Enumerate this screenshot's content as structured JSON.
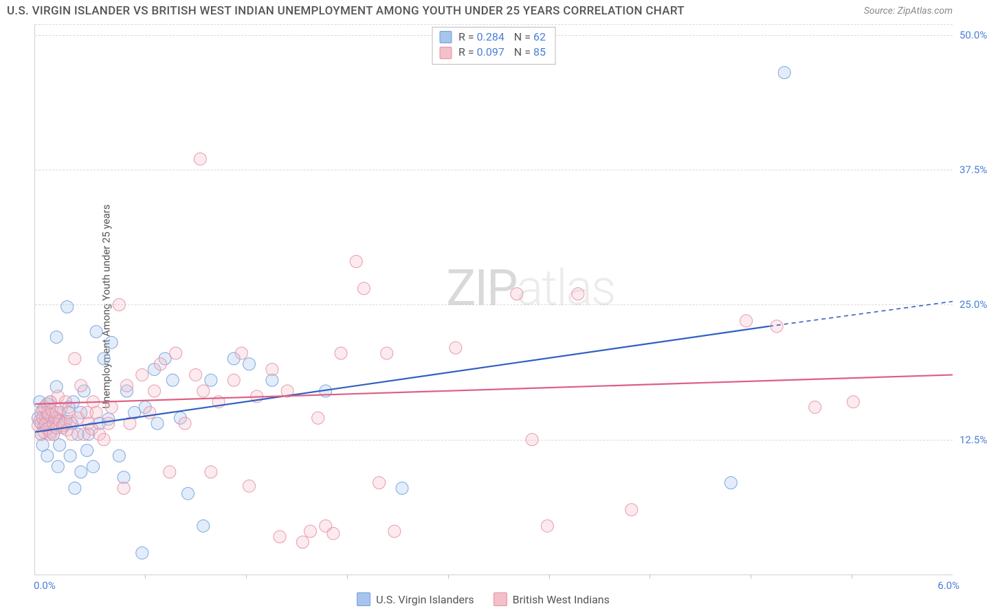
{
  "title": "U.S. VIRGIN ISLANDER VS BRITISH WEST INDIAN UNEMPLOYMENT AMONG YOUTH UNDER 25 YEARS CORRELATION CHART",
  "source": "Source: ZipAtlas.com",
  "y_axis_label": "Unemployment Among Youth under 25 years",
  "watermark_a": "ZIP",
  "watermark_b": "atlas",
  "chart": {
    "type": "scatter",
    "background_color": "#ffffff",
    "grid_color": "#d8d8d8",
    "axis_color": "#d0d0d0",
    "label_color": "#4a7fd8",
    "text_color": "#555555",
    "xlim": [
      0.0,
      6.0
    ],
    "ylim": [
      0.0,
      51.0
    ],
    "ytick_step": 12.5,
    "y_ticks": [
      {
        "v": 50.0,
        "label": "50.0%"
      },
      {
        "v": 37.5,
        "label": "37.5%"
      },
      {
        "v": 25.0,
        "label": "25.0%"
      },
      {
        "v": 12.5,
        "label": "12.5%"
      }
    ],
    "x_axis_labels": {
      "min": "0.0%",
      "max": "6.0%"
    },
    "x_tick_positions_pct": [
      12,
      23,
      34,
      45,
      56,
      67,
      78,
      89
    ],
    "marker_radius": 9,
    "marker_fill_opacity": 0.32,
    "marker_stroke_opacity": 0.9,
    "line_width_solid": 2.2,
    "line_width_dash": 1.6,
    "series": [
      {
        "name": "U.S. Virgin Islanders",
        "color_fill": "#a7c4ec",
        "color_stroke": "#6f9ede",
        "line_color": "#2f5fc2",
        "R": "0.284",
        "N": "62",
        "regression": {
          "x1": 0.0,
          "y1": 13.2,
          "x2": 4.8,
          "y2": 23.0,
          "x2_dash": 6.0,
          "y2_dash": 25.3
        },
        "points": [
          [
            0.02,
            14.5
          ],
          [
            0.03,
            16.0
          ],
          [
            0.04,
            13.0
          ],
          [
            0.04,
            14.0
          ],
          [
            0.05,
            15.2
          ],
          [
            0.05,
            12.0
          ],
          [
            0.06,
            13.8
          ],
          [
            0.07,
            14.6
          ],
          [
            0.08,
            15.8
          ],
          [
            0.08,
            11.0
          ],
          [
            0.09,
            14.0
          ],
          [
            0.1,
            13.2
          ],
          [
            0.1,
            16.0
          ],
          [
            0.11,
            14.8
          ],
          [
            0.12,
            13.0
          ],
          [
            0.14,
            17.4
          ],
          [
            0.14,
            22.0
          ],
          [
            0.14,
            14.5
          ],
          [
            0.15,
            10.0
          ],
          [
            0.16,
            12.0
          ],
          [
            0.16,
            15.0
          ],
          [
            0.18,
            13.6
          ],
          [
            0.2,
            14.2
          ],
          [
            0.21,
            24.8
          ],
          [
            0.22,
            15.5
          ],
          [
            0.23,
            11.0
          ],
          [
            0.24,
            14.0
          ],
          [
            0.25,
            16.0
          ],
          [
            0.26,
            8.0
          ],
          [
            0.28,
            13.0
          ],
          [
            0.3,
            15.0
          ],
          [
            0.3,
            9.5
          ],
          [
            0.32,
            17.0
          ],
          [
            0.34,
            11.5
          ],
          [
            0.35,
            13.0
          ],
          [
            0.38,
            10.0
          ],
          [
            0.4,
            22.5
          ],
          [
            0.42,
            14.0
          ],
          [
            0.45,
            20.0
          ],
          [
            0.48,
            14.4
          ],
          [
            0.5,
            21.5
          ],
          [
            0.55,
            11.0
          ],
          [
            0.58,
            9.0
          ],
          [
            0.6,
            17.0
          ],
          [
            0.65,
            15.0
          ],
          [
            0.7,
            2.0
          ],
          [
            0.72,
            15.5
          ],
          [
            0.78,
            19.0
          ],
          [
            0.8,
            14.0
          ],
          [
            0.85,
            20.0
          ],
          [
            0.9,
            18.0
          ],
          [
            0.95,
            14.5
          ],
          [
            1.0,
            7.5
          ],
          [
            1.1,
            4.5
          ],
          [
            1.15,
            18.0
          ],
          [
            1.3,
            20.0
          ],
          [
            1.4,
            19.5
          ],
          [
            1.55,
            18.0
          ],
          [
            1.9,
            17.0
          ],
          [
            2.4,
            8.0
          ],
          [
            4.55,
            8.5
          ],
          [
            4.9,
            46.5
          ]
        ]
      },
      {
        "name": "British West Indians",
        "color_fill": "#f3bfc9",
        "color_stroke": "#e78fa2",
        "line_color": "#de5e83",
        "R": "0.097",
        "N": "85",
        "regression": {
          "x1": 0.0,
          "y1": 15.8,
          "x2": 6.0,
          "y2": 18.5
        },
        "points": [
          [
            0.02,
            13.8
          ],
          [
            0.03,
            14.2
          ],
          [
            0.04,
            15.0
          ],
          [
            0.04,
            13.0
          ],
          [
            0.05,
            14.5
          ],
          [
            0.06,
            13.2
          ],
          [
            0.06,
            15.5
          ],
          [
            0.07,
            14.0
          ],
          [
            0.08,
            15.0
          ],
          [
            0.08,
            13.5
          ],
          [
            0.09,
            14.8
          ],
          [
            0.1,
            16.0
          ],
          [
            0.1,
            13.0
          ],
          [
            0.11,
            15.2
          ],
          [
            0.12,
            14.0
          ],
          [
            0.12,
            13.0
          ],
          [
            0.13,
            14.5
          ],
          [
            0.14,
            15.0
          ],
          [
            0.14,
            13.6
          ],
          [
            0.15,
            16.5
          ],
          [
            0.16,
            14.2
          ],
          [
            0.17,
            15.4
          ],
          [
            0.18,
            13.8
          ],
          [
            0.19,
            14.0
          ],
          [
            0.2,
            16.0
          ],
          [
            0.21,
            13.4
          ],
          [
            0.22,
            15.0
          ],
          [
            0.23,
            14.2
          ],
          [
            0.24,
            13.0
          ],
          [
            0.26,
            20.0
          ],
          [
            0.28,
            14.5
          ],
          [
            0.3,
            17.5
          ],
          [
            0.32,
            13.0
          ],
          [
            0.34,
            15.0
          ],
          [
            0.35,
            14.0
          ],
          [
            0.37,
            13.5
          ],
          [
            0.38,
            16.0
          ],
          [
            0.4,
            15.0
          ],
          [
            0.42,
            13.0
          ],
          [
            0.45,
            12.5
          ],
          [
            0.48,
            14.0
          ],
          [
            0.5,
            15.5
          ],
          [
            0.55,
            25.0
          ],
          [
            0.58,
            8.0
          ],
          [
            0.6,
            17.5
          ],
          [
            0.62,
            14.0
          ],
          [
            0.7,
            18.5
          ],
          [
            0.75,
            15.0
          ],
          [
            0.78,
            17.0
          ],
          [
            0.82,
            19.5
          ],
          [
            0.88,
            9.5
          ],
          [
            0.92,
            20.5
          ],
          [
            0.98,
            14.0
          ],
          [
            1.05,
            18.5
          ],
          [
            1.08,
            38.5
          ],
          [
            1.1,
            17.0
          ],
          [
            1.15,
            9.5
          ],
          [
            1.2,
            16.0
          ],
          [
            1.3,
            18.0
          ],
          [
            1.35,
            20.5
          ],
          [
            1.4,
            8.2
          ],
          [
            1.45,
            16.5
          ],
          [
            1.55,
            19.0
          ],
          [
            1.6,
            3.5
          ],
          [
            1.65,
            17.0
          ],
          [
            1.75,
            3.0
          ],
          [
            1.8,
            4.0
          ],
          [
            1.85,
            14.5
          ],
          [
            1.9,
            4.5
          ],
          [
            1.95,
            3.8
          ],
          [
            2.0,
            20.5
          ],
          [
            2.1,
            29.0
          ],
          [
            2.15,
            26.5
          ],
          [
            2.25,
            8.5
          ],
          [
            2.3,
            20.5
          ],
          [
            2.35,
            4.0
          ],
          [
            2.75,
            21.0
          ],
          [
            3.15,
            26.0
          ],
          [
            3.25,
            12.5
          ],
          [
            3.35,
            4.5
          ],
          [
            3.55,
            26.0
          ],
          [
            3.9,
            6.0
          ],
          [
            4.65,
            23.5
          ],
          [
            4.85,
            23.0
          ],
          [
            5.1,
            15.5
          ],
          [
            5.35,
            16.0
          ]
        ]
      }
    ]
  },
  "legend_bottom": [
    {
      "swatch_fill": "#a7c4ec",
      "swatch_stroke": "#6f9ede",
      "label": "U.S. Virgin Islanders"
    },
    {
      "swatch_fill": "#f3bfc9",
      "swatch_stroke": "#e78fa2",
      "label": "British West Indians"
    }
  ]
}
